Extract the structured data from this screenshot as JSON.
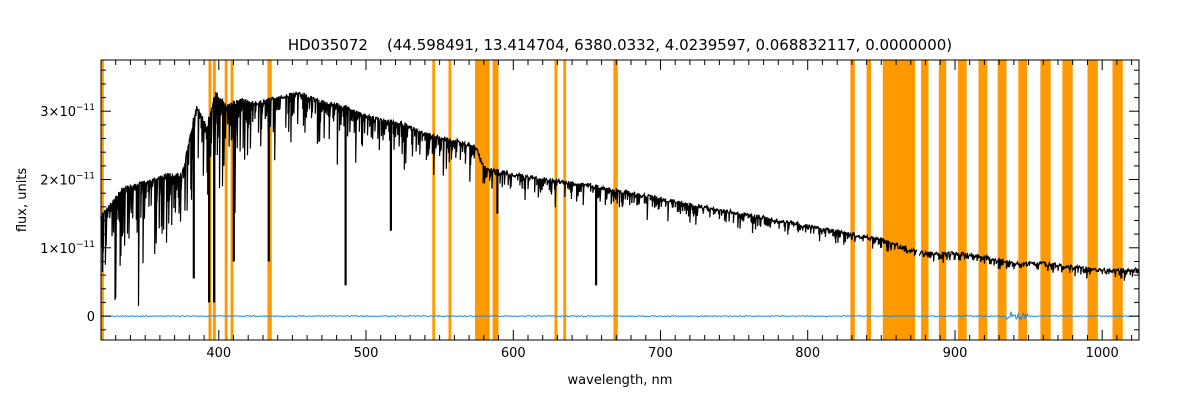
{
  "chart_data": {
    "type": "line",
    "title": "HD035072    (44.598491, 13.414704, 6380.0332, 4.0239597, 0.068832117, 0.0000000)",
    "xlabel": "wavelength, nm",
    "ylabel": "flux, units",
    "xlim": [
      320,
      1025
    ],
    "ylim": [
      -3.5e-12,
      3.75e-11
    ],
    "grid": false,
    "x_ticks": [
      {
        "value": 400,
        "label": "400"
      },
      {
        "value": 500,
        "label": "500"
      },
      {
        "value": 600,
        "label": "600"
      },
      {
        "value": 700,
        "label": "700"
      },
      {
        "value": 800,
        "label": "800"
      },
      {
        "value": 900,
        "label": "900"
      },
      {
        "value": 1000,
        "label": "1000"
      }
    ],
    "y_ticks": [
      {
        "value": 0,
        "base": "0",
        "exp": ""
      },
      {
        "value": 1e-11,
        "base": "1×10",
        "exp": "−11"
      },
      {
        "value": 2e-11,
        "base": "2×10",
        "exp": "−11"
      },
      {
        "value": 3e-11,
        "base": "3×10",
        "exp": "−11"
      }
    ],
    "colors": {
      "flux": "#000000",
      "error": "#1e88e5",
      "mask": "#ff9900"
    },
    "masked_regions": [
      [
        320,
        322
      ],
      [
        393,
        395
      ],
      [
        396,
        398
      ],
      [
        404,
        406
      ],
      [
        408,
        410
      ],
      [
        433,
        436
      ],
      [
        545,
        547
      ],
      [
        556,
        558
      ],
      [
        574,
        584
      ],
      [
        586,
        590
      ],
      [
        628,
        630
      ],
      [
        634,
        636
      ],
      [
        668,
        671
      ],
      [
        829,
        832
      ],
      [
        840,
        843
      ],
      [
        851,
        873
      ],
      [
        877,
        882
      ],
      [
        889,
        894
      ],
      [
        902,
        908
      ],
      [
        916,
        922
      ],
      [
        929,
        935
      ],
      [
        943,
        949
      ],
      [
        958,
        965
      ],
      [
        973,
        980
      ],
      [
        990,
        997
      ],
      [
        1007,
        1014
      ]
    ],
    "series": [
      {
        "role": "flux",
        "envelope": [
          [
            320,
            1.5
          ],
          [
            335,
            1.9
          ],
          [
            350,
            2.0
          ],
          [
            365,
            2.1
          ],
          [
            375,
            2.1
          ],
          [
            385,
            3.1
          ],
          [
            392,
            2.8
          ],
          [
            398,
            3.3
          ],
          [
            405,
            3.1
          ],
          [
            415,
            3.2
          ],
          [
            425,
            3.15
          ],
          [
            435,
            3.2
          ],
          [
            445,
            3.25
          ],
          [
            455,
            3.3
          ],
          [
            465,
            3.2
          ],
          [
            475,
            3.15
          ],
          [
            485,
            3.1
          ],
          [
            495,
            3.0
          ],
          [
            510,
            2.9
          ],
          [
            525,
            2.85
          ],
          [
            540,
            2.7
          ],
          [
            560,
            2.6
          ],
          [
            575,
            2.5
          ],
          [
            580,
            2.2
          ],
          [
            600,
            2.1
          ],
          [
            650,
            1.95
          ],
          [
            700,
            1.75
          ],
          [
            750,
            1.55
          ],
          [
            800,
            1.35
          ],
          [
            850,
            1.15
          ],
          [
            855,
            1.1
          ],
          [
            870,
            1.0
          ],
          [
            880,
            0.95
          ],
          [
            900,
            0.95
          ],
          [
            920,
            0.9
          ],
          [
            940,
            0.8
          ],
          [
            960,
            0.8
          ],
          [
            980,
            0.75
          ],
          [
            1000,
            0.7
          ],
          [
            1025,
            0.7
          ]
        ],
        "depth": [
          [
            320,
            1.2
          ],
          [
            380,
            1.3
          ],
          [
            400,
            1.0
          ],
          [
            450,
            0.7
          ],
          [
            500,
            0.5
          ],
          [
            575,
            0.3
          ],
          [
            600,
            0.25
          ],
          [
            700,
            0.18
          ],
          [
            800,
            0.12
          ],
          [
            900,
            0.1
          ],
          [
            1025,
            0.08
          ]
        ],
        "strong_lines": [
          {
            "x": 383,
            "y": 0.55
          },
          {
            "x": 393.4,
            "y": 0.2
          },
          {
            "x": 396.8,
            "y": 0.2
          },
          {
            "x": 410.2,
            "y": 0.8
          },
          {
            "x": 434.0,
            "y": 0.8
          },
          {
            "x": 486.1,
            "y": 0.45
          },
          {
            "x": 516.9,
            "y": 1.25
          },
          {
            "x": 589.2,
            "y": 1.5
          },
          {
            "x": 656.3,
            "y": 0.45
          },
          {
            "x": 849.8,
            "y": 1.0
          },
          {
            "x": 854.2,
            "y": 0.95
          },
          {
            "x": 866.2,
            "y": 0.95
          },
          {
            "x": 1013,
            "y": 0.55
          }
        ],
        "gap": [
          874,
          876
        ]
      },
      {
        "role": "error",
        "level": 0.0,
        "noise": 0.015
      }
    ]
  }
}
